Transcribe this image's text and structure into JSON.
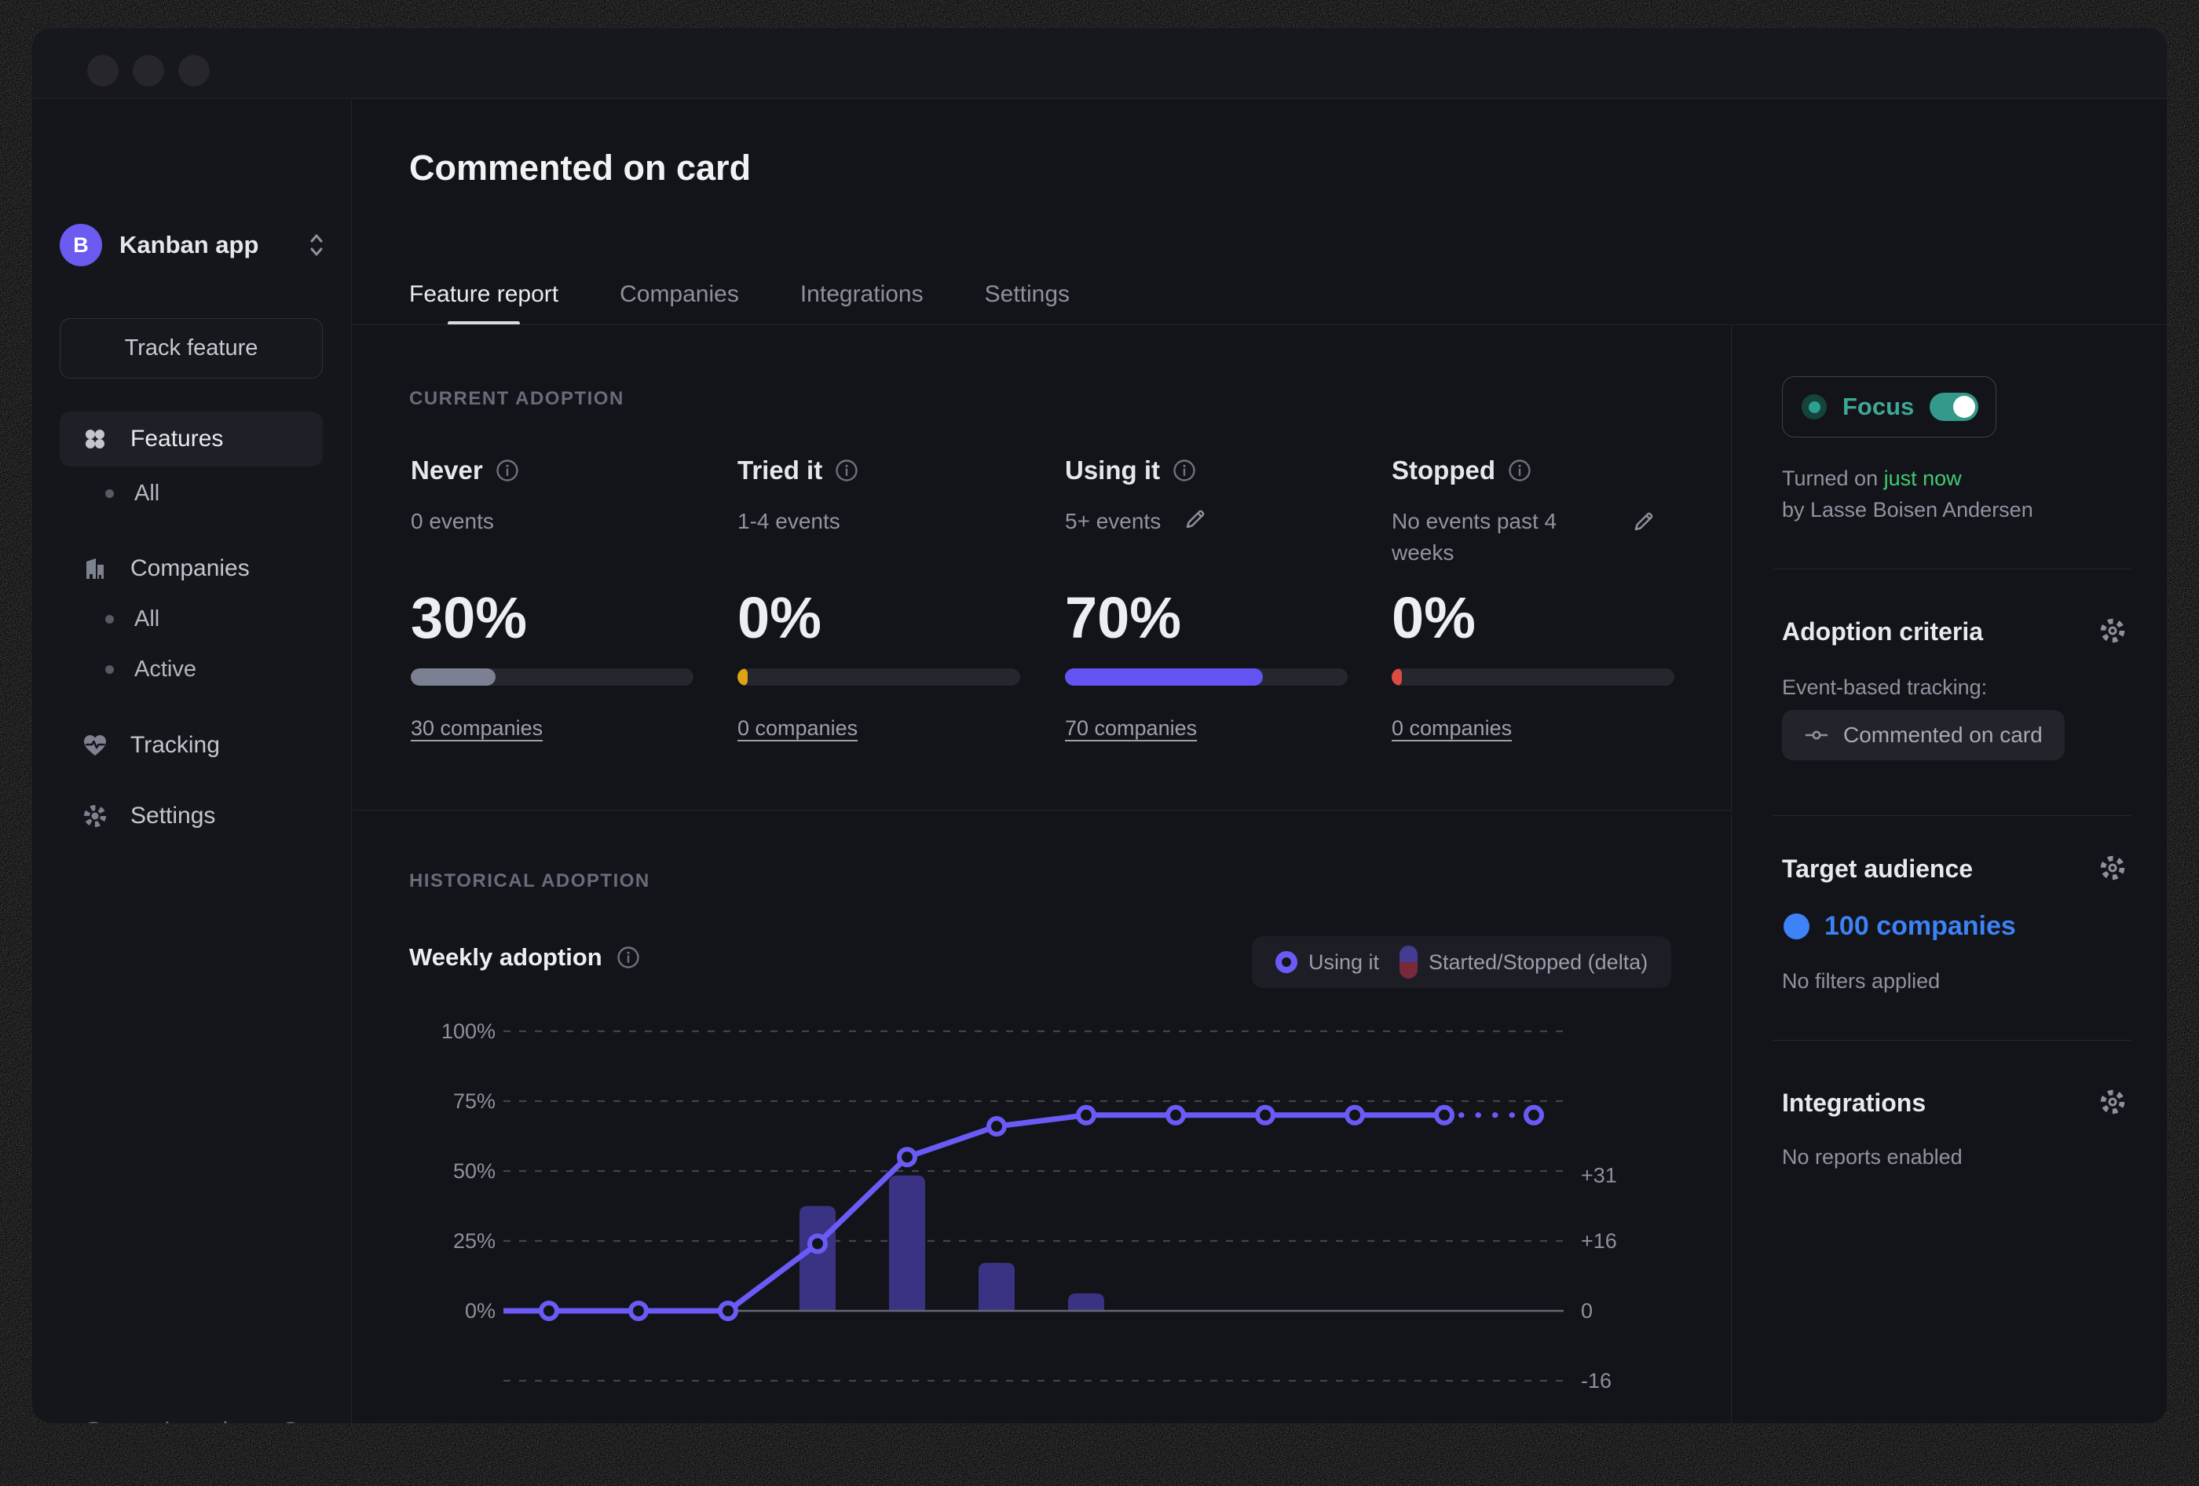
{
  "colors": {
    "accent_purple": "#6a5bf7",
    "bar_purple": "#3a3384",
    "teal": "#33998a",
    "green": "#3ecb72",
    "blue": "#3d82f6",
    "gray_fill": "#7b8092",
    "yellow_fill": "#dca414",
    "red_fill": "#dc4b44"
  },
  "sidebar": {
    "workspace": {
      "initial": "B",
      "name": "Kanban app"
    },
    "track_feature_label": "Track feature",
    "nav": {
      "features": {
        "label": "Features",
        "sub_all": "All"
      },
      "companies": {
        "label": "Companies",
        "sub_all": "All",
        "sub_active": "Active"
      },
      "tracking": {
        "label": "Tracking"
      },
      "settings": {
        "label": "Settings"
      }
    },
    "footer_icons": [
      "help-buoy",
      "sync-activity",
      "theme-sun",
      "logout"
    ]
  },
  "header": {
    "title": "Commented on card",
    "tabs": [
      {
        "label": "Feature report",
        "active": true
      },
      {
        "label": "Companies",
        "active": false
      },
      {
        "label": "Integrations",
        "active": false
      },
      {
        "label": "Settings",
        "active": false
      }
    ]
  },
  "current_adoption": {
    "section_label": "CURRENT ADOPTION",
    "cards": [
      {
        "title": "Never",
        "criteria": "0 events",
        "percent": "30%",
        "value": 30,
        "bar_width_pct": 30,
        "bar_color": "#7b8092",
        "companies": "30 companies"
      },
      {
        "title": "Tried it",
        "criteria": "1-4 events",
        "percent": "0%",
        "value": 0,
        "bar_width_pct": 3.5,
        "bar_color": "#dca414",
        "companies": "0 companies"
      },
      {
        "title": "Using it",
        "criteria": "5+ events",
        "percent": "70%",
        "value": 70,
        "bar_width_pct": 70,
        "bar_color": "#6454f3",
        "companies": "70 companies"
      },
      {
        "title": "Stopped",
        "criteria": "No events past 4 weeks",
        "percent": "0%",
        "value": 0,
        "bar_width_pct": 3.5,
        "bar_color": "#dc4b44",
        "companies": "0 companies"
      }
    ]
  },
  "historical": {
    "section_label": "HISTORICAL ADOPTION",
    "title": "Weekly adoption",
    "legend": [
      {
        "label": "Using it"
      },
      {
        "label": "Started/Stopped (delta)"
      }
    ]
  },
  "chart_data": {
    "type": "line+bar",
    "title": "Weekly adoption",
    "x_unit": "week",
    "x": [
      1,
      2,
      3,
      4,
      5,
      6,
      7,
      8,
      9,
      10,
      11,
      12
    ],
    "series": [
      {
        "name": "Using it",
        "type": "line",
        "unit": "%",
        "color": "#6a5bf7",
        "values": [
          0,
          0,
          0,
          24,
          55,
          66,
          70,
          70,
          70,
          70,
          70,
          70
        ],
        "last_segment_style": "dotted"
      },
      {
        "name": "Started/Stopped (delta)",
        "type": "bar",
        "unit": "companies",
        "color": "#3a3384",
        "values": [
          0,
          0,
          0,
          24,
          31,
          11,
          4,
          0,
          0,
          0,
          0,
          0
        ]
      }
    ],
    "left_axis": {
      "unit": "%",
      "range": [
        -25,
        100
      ],
      "ticks": [
        {
          "label": "100%",
          "pct": 100
        },
        {
          "label": "75%",
          "pct": 75
        },
        {
          "label": "50%",
          "pct": 50
        },
        {
          "label": "25%",
          "pct": 25
        },
        {
          "label": "0%",
          "pct": 0
        }
      ]
    },
    "right_axis": {
      "unit": "companies delta",
      "ticks": [
        {
          "label": "+31",
          "delta": 31
        },
        {
          "label": "+16",
          "delta": 16
        },
        {
          "label": "0",
          "delta": 0
        },
        {
          "label": "-16",
          "delta": -16
        }
      ]
    },
    "grid": {
      "horizontal": "dashed",
      "baseline": "solid"
    },
    "legend_position": "top-right"
  },
  "panel": {
    "focus": {
      "label": "Focus",
      "enabled": true
    },
    "turned_on_prefix": "Turned on ",
    "turned_on_time": "just now",
    "turned_on_by": "by Lasse Boisen Andersen",
    "adoption_criteria": {
      "heading": "Adoption criteria",
      "subheading": "Event-based tracking:",
      "chip": "Commented on card"
    },
    "target_audience": {
      "heading": "Target audience",
      "value": "100 companies",
      "note": "No filters applied"
    },
    "integrations": {
      "heading": "Integrations",
      "note": "No reports enabled"
    }
  }
}
